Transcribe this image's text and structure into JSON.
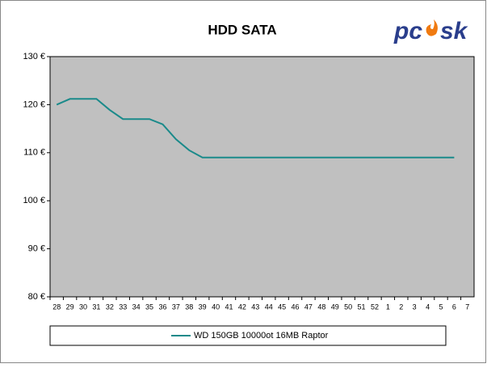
{
  "chart_data": {
    "type": "line",
    "title": "HDD SATA",
    "categories": [
      "28",
      "29",
      "30",
      "31",
      "32",
      "33",
      "34",
      "35",
      "36",
      "37",
      "38",
      "39",
      "40",
      "41",
      "42",
      "43",
      "44",
      "45",
      "46",
      "47",
      "48",
      "49",
      "50",
      "51",
      "52",
      "1",
      "2",
      "3",
      "4",
      "5",
      "6",
      "7"
    ],
    "series": [
      {
        "name": "WD 150GB 10000ot 16MB Raptor",
        "color": "#1a8a8a",
        "values": [
          120,
          121.2,
          121.2,
          121.2,
          118.9,
          117,
          117,
          117,
          115.9,
          112.8,
          110.5,
          109,
          109,
          109,
          109,
          109,
          109,
          109,
          109,
          109,
          109,
          109,
          109,
          109,
          109,
          109,
          109,
          109,
          109,
          109,
          109,
          null
        ]
      }
    ],
    "ylim": [
      80,
      130
    ],
    "yticks": [
      {
        "value": 80,
        "label": "80 €"
      },
      {
        "value": 90,
        "label": "90 €"
      },
      {
        "value": 100,
        "label": "100 €"
      },
      {
        "value": 110,
        "label": "110 €"
      },
      {
        "value": 120,
        "label": "120 €"
      },
      {
        "value": 130,
        "label": "130 €"
      }
    ],
    "grid": false,
    "legend": "bottom"
  },
  "logo": [
    "pc",
    "sk"
  ]
}
